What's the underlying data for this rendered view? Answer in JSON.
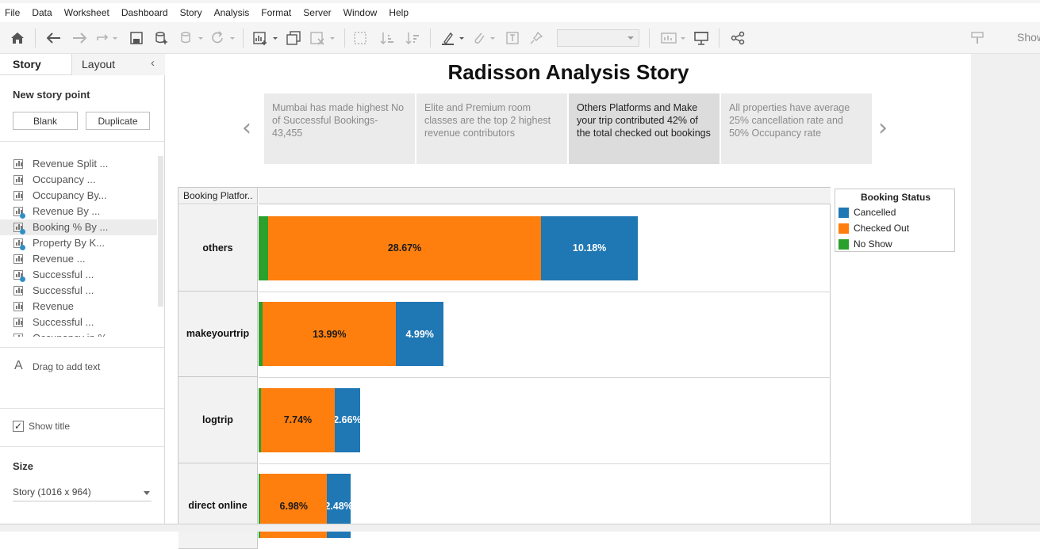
{
  "menu": [
    "File",
    "Data",
    "Worksheet",
    "Dashboard",
    "Story",
    "Analysis",
    "Format",
    "Server",
    "Window",
    "Help"
  ],
  "toolbar": {
    "show_label": "Show"
  },
  "left_pane": {
    "tab_story": "Story",
    "tab_layout": "Layout",
    "new_story_point": "New story point",
    "blank_label": "Blank",
    "duplicate_label": "Duplicate",
    "sheets": [
      {
        "label": "Revenue Split ...",
        "selected": false,
        "dashboard": false
      },
      {
        "label": "Occupancy ...",
        "selected": false,
        "dashboard": false
      },
      {
        "label": "Occupancy By...",
        "selected": false,
        "dashboard": false
      },
      {
        "label": "Revenue By ...",
        "selected": false,
        "dashboard": true
      },
      {
        "label": "Booking % By ...",
        "selected": true,
        "dashboard": true
      },
      {
        "label": "Property By K...",
        "selected": false,
        "dashboard": true
      },
      {
        "label": "Revenue ...",
        "selected": false,
        "dashboard": false
      },
      {
        "label": "Successful ...",
        "selected": false,
        "dashboard": true
      },
      {
        "label": "Successful ...",
        "selected": false,
        "dashboard": false
      },
      {
        "label": "Revenue",
        "selected": false,
        "dashboard": false
      },
      {
        "label": "Successful ...",
        "selected": false,
        "dashboard": false
      },
      {
        "label": "Occupancy in %",
        "selected": false,
        "dashboard": false
      }
    ],
    "drag_text": "Drag to add text",
    "show_title_label": "Show title",
    "size_title": "Size",
    "size_value": "Story (1016 x 964)"
  },
  "story": {
    "title": "Radisson Analysis Story",
    "points": [
      {
        "text": "Mumbai has made highest No of Successful Bookings-43,455",
        "active": false
      },
      {
        "text": "Elite and Premium room classes are the top 2 highest revenue contributors",
        "active": false
      },
      {
        "text": "Others Platforms and Make your trip contributed 42% of the total checked out bookings",
        "active": true
      },
      {
        "text": "All properties have average 25% cancellation rate and 50% Occupancy rate",
        "active": false
      }
    ]
  },
  "chart_data": {
    "type": "bar",
    "orientation": "horizontal",
    "stacked": true,
    "row_header": "Booking Platfor..",
    "categories": [
      "others",
      "makeyourtrip",
      "logtrip",
      "direct online"
    ],
    "series": [
      {
        "name": "No Show",
        "color": "#2ca02c",
        "values": [
          1.0,
          0.45,
          0.25,
          0.2
        ],
        "labels": [
          "",
          "",
          "",
          ""
        ]
      },
      {
        "name": "Checked Out",
        "color": "#ff7f0e",
        "values": [
          28.67,
          13.99,
          7.74,
          6.98
        ],
        "labels": [
          "28.67%",
          "13.99%",
          "7.74%",
          "6.98%"
        ]
      },
      {
        "name": "Cancelled",
        "color": "#1f77b4",
        "values": [
          10.18,
          4.99,
          2.66,
          2.48
        ],
        "labels": [
          "10.18%",
          "4.99%",
          "2.66%",
          "2.48%"
        ]
      }
    ],
    "legend": {
      "title": "Booking Status",
      "position": "top-right",
      "items": [
        {
          "name": "Cancelled",
          "color": "#1f77b4"
        },
        {
          "name": "Checked Out",
          "color": "#ff7f0e"
        },
        {
          "name": "No Show",
          "color": "#2ca02c"
        }
      ]
    }
  }
}
